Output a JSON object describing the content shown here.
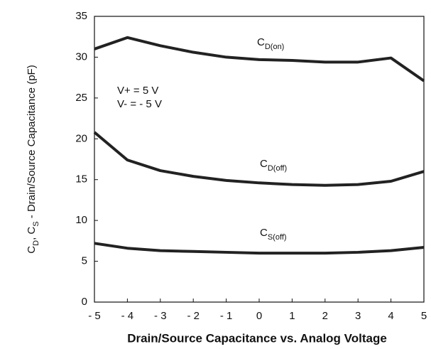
{
  "chart_data": {
    "type": "line",
    "title": "Drain/Source Capacitance vs. Analog Voltage",
    "ylabel": [
      {
        "text": "C"
      },
      {
        "text": "D",
        "sub": true
      },
      {
        "text": ", C"
      },
      {
        "text": "S",
        "sub": true
      },
      {
        "text": " - Drain/Source Capacitance (pF)"
      }
    ],
    "annotations": [
      "V+ = 5 V",
      "V- = - 5 V"
    ],
    "x": [
      -5,
      -4,
      -3,
      -2,
      -1,
      0,
      1,
      2,
      3,
      4,
      5
    ],
    "xlim": [
      -5,
      5
    ],
    "xticks": [
      {
        "value": -5,
        "label": "- 5"
      },
      {
        "value": -4,
        "label": "- 4"
      },
      {
        "value": -3,
        "label": "- 3"
      },
      {
        "value": -2,
        "label": "- 2"
      },
      {
        "value": -1,
        "label": "- 1"
      },
      0,
      1,
      2,
      3,
      4,
      5
    ],
    "ylim": [
      0,
      35
    ],
    "yticks": [
      0,
      5,
      10,
      15,
      20,
      25,
      30,
      35
    ],
    "grid": false,
    "series": [
      {
        "name": "C",
        "name_sub": "D(on)",
        "color": "#222222",
        "values": [
          31.0,
          32.4,
          31.4,
          30.6,
          30.0,
          29.7,
          29.6,
          29.4,
          29.4,
          29.9,
          27.1
        ]
      },
      {
        "name": "C",
        "name_sub": "D(off)",
        "color": "#222222",
        "values": [
          20.8,
          17.4,
          16.1,
          15.4,
          14.9,
          14.6,
          14.4,
          14.3,
          14.4,
          14.8,
          16.0
        ]
      },
      {
        "name": "C",
        "name_sub": "S(off)",
        "color": "#222222",
        "values": [
          7.2,
          6.6,
          6.3,
          6.2,
          6.1,
          6.0,
          6.0,
          6.0,
          6.1,
          6.3,
          6.7
        ]
      }
    ]
  }
}
